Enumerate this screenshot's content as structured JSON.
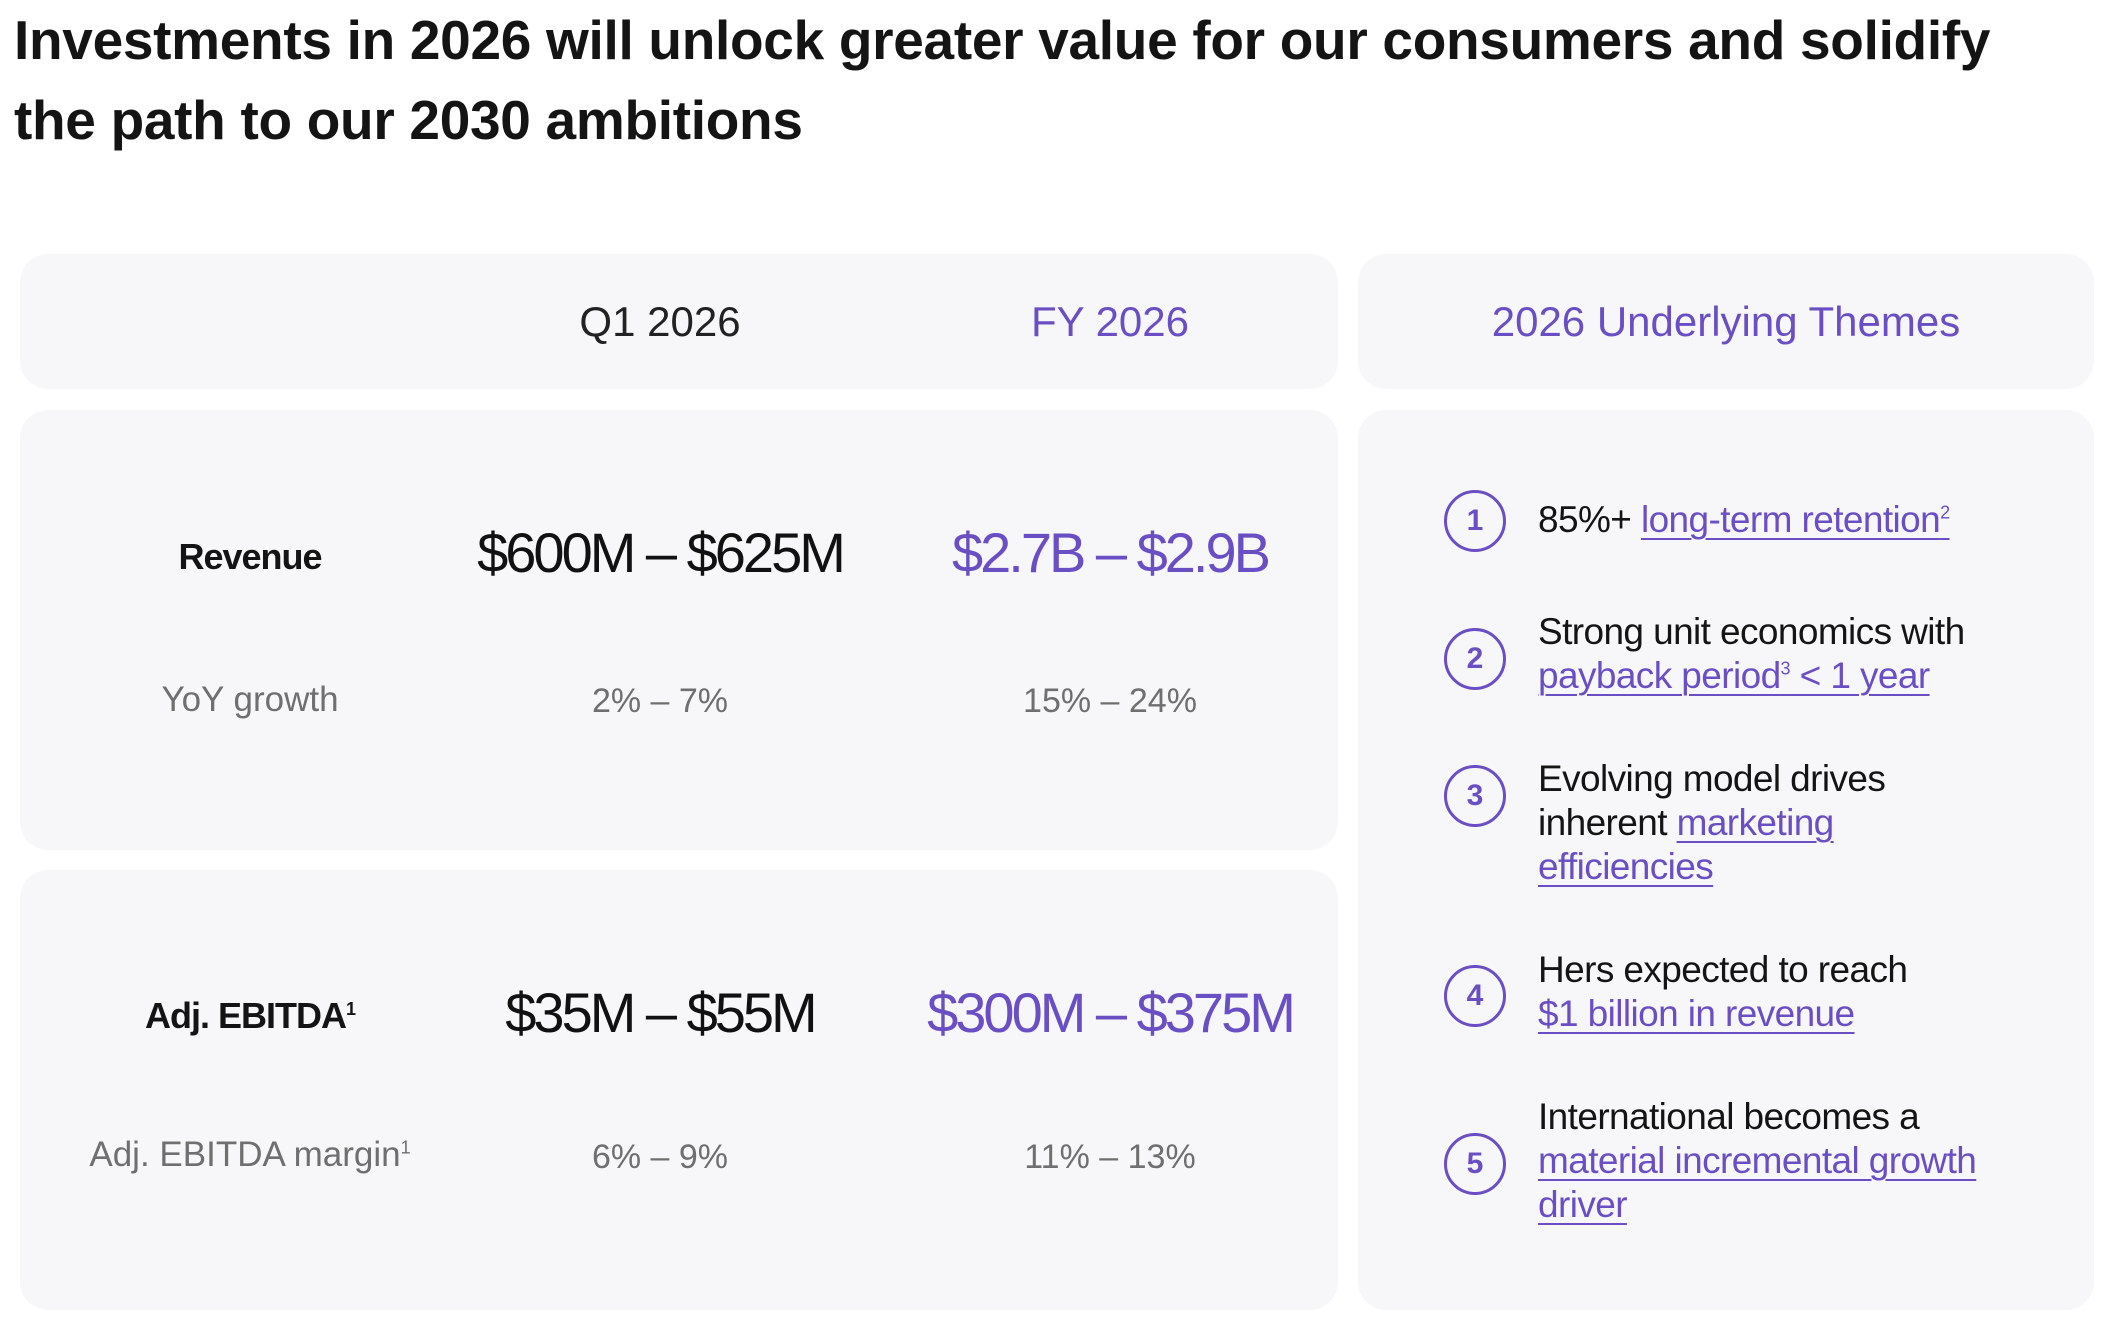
{
  "headline": {
    "line1": "Investments in 2026 will unlock greater value for our consumers and solidify",
    "line2": "the path to our 2030 ambitions"
  },
  "table": {
    "columns": [
      "Q1 2026",
      "FY 2026"
    ],
    "themes_header": "2026 Underlying Themes",
    "revenue": {
      "label": "Revenue",
      "q1": "$600M – $625M",
      "fy": "$2.7B – $2.9B",
      "growth_label": "YoY growth",
      "growth_q1": "2% – 7%",
      "growth_fy": "15% – 24%"
    },
    "ebitda": {
      "label": "Adj. EBITDA",
      "label_sup": "1",
      "q1": "$35M – $55M",
      "fy": "$300M – $375M",
      "margin_label": "Adj. EBITDA margin",
      "margin_sup": "1",
      "margin_q1": "6% – 9%",
      "margin_fy": "11% – 13%"
    }
  },
  "themes": [
    {
      "number": "1",
      "text_plain": "85%+ ",
      "text_link": "long-term retention",
      "sup": "2"
    },
    {
      "number": "2",
      "text_plain": "Strong unit economics with",
      "text_link": "payback period",
      "sup": "3",
      "text_link_after": " < 1 year"
    },
    {
      "number": "3",
      "text_plain": "Evolving model drives inherent ",
      "text_link": "marketing efficiencies"
    },
    {
      "number": "4",
      "text_plain": "Hers expected to reach",
      "text_link": "$1 billion in revenue"
    },
    {
      "number": "5",
      "text_plain": "International becomes a",
      "text_link": "material incremental growth driver"
    }
  ],
  "colors": {
    "accent": "#6a4fc4",
    "panel": "#f7f7f9",
    "text": "#141414",
    "muted": "#6f6f6f"
  }
}
